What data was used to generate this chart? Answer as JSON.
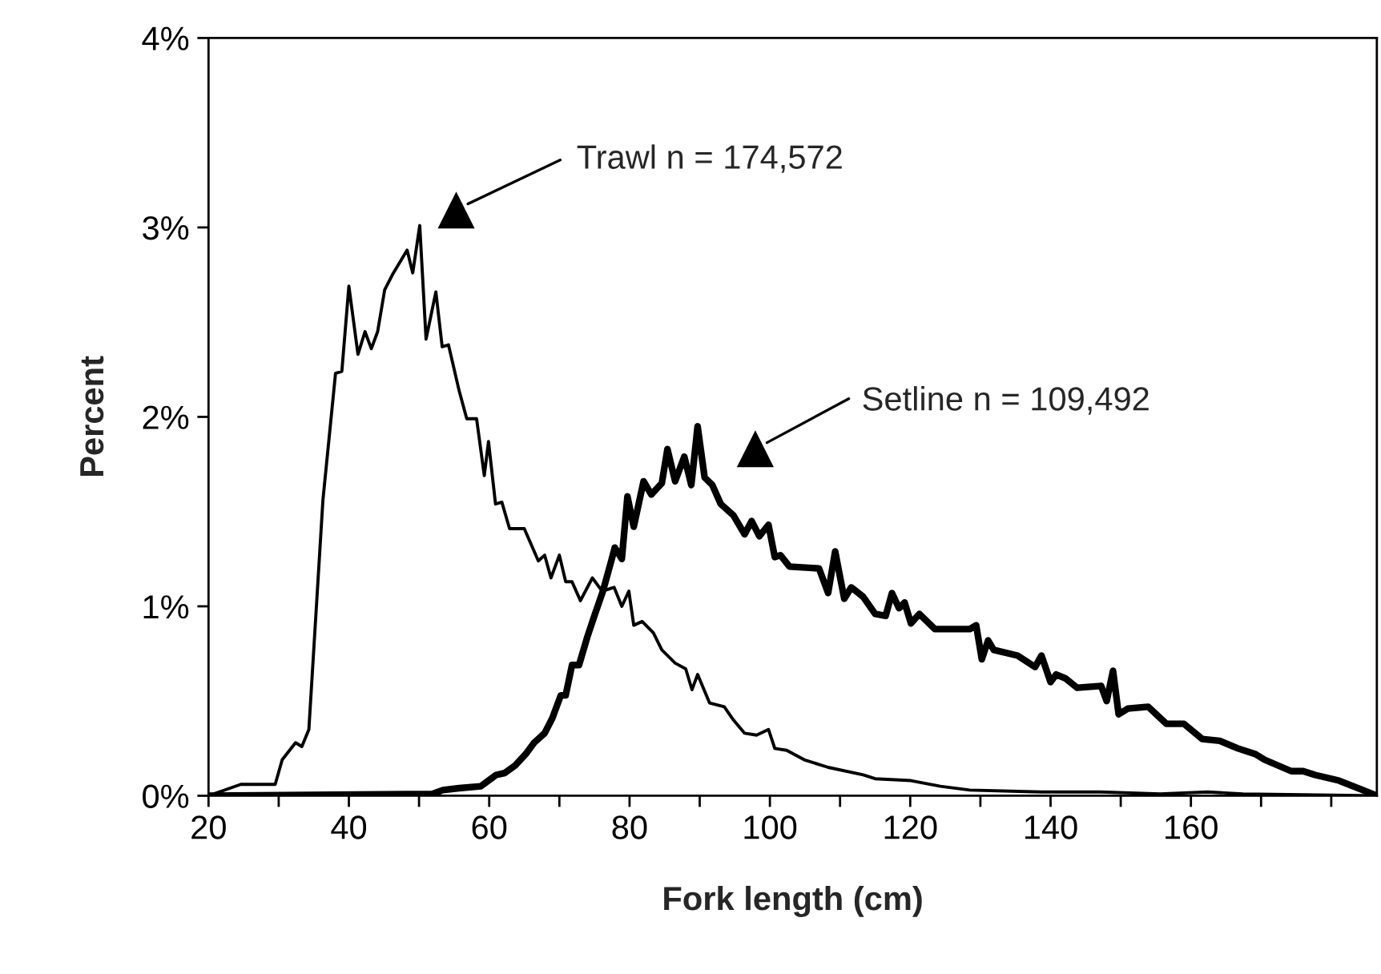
{
  "chart_data": {
    "type": "line",
    "xlabel": "Fork length (cm)",
    "ylabel": "Percent",
    "xlim": [
      20,
      186.5
    ],
    "xticks": [
      20,
      {
        "value": 30,
        "label": null
      },
      40,
      {
        "value": 50,
        "label": null
      },
      60,
      {
        "value": 70,
        "label": null
      },
      80,
      {
        "value": 90,
        "label": null
      },
      100,
      {
        "value": 110,
        "label": null
      },
      120,
      {
        "value": 130,
        "label": null
      },
      140,
      {
        "value": 150,
        "label": null
      },
      160,
      {
        "value": 170,
        "label": null
      },
      {
        "value": 180,
        "label": null
      }
    ],
    "ylim": [
      0,
      4
    ],
    "yticks": [
      {
        "value": 0,
        "label": "0%"
      },
      {
        "value": 1,
        "label": "1%"
      },
      {
        "value": 2,
        "label": "2%"
      },
      {
        "value": 3,
        "label": "3%"
      },
      {
        "value": 4,
        "label": "4%"
      }
    ],
    "grid": false,
    "legend": false,
    "marker": "none",
    "line_style": "solid",
    "series": [
      {
        "color": "#000000",
        "x": [
          20,
          24.6,
          29.5,
          30.5,
          32.4,
          33.3,
          34.3,
          36.3,
          38.1,
          39,
          40,
          41.3,
          42.3,
          43.2,
          44.1,
          45.1,
          46.2,
          48.3,
          49.1,
          50.1,
          51,
          52.4,
          53.3,
          54.2,
          55.7,
          56.8,
          58.2,
          59.3,
          59.9,
          60.9,
          61.8,
          62.9,
          65,
          67,
          67.9,
          68.8,
          70,
          70.9,
          71.8,
          73,
          74.7,
          76.1,
          77.8,
          78.9,
          79.9,
          80.6,
          81.8,
          83.4,
          84.6,
          86.5,
          88,
          88.9,
          89.7,
          91.4,
          93.5,
          94.8,
          96.4,
          98.1,
          99.8,
          100.7,
          102.4,
          104.9,
          108.3,
          113.3,
          115,
          120.1,
          124.3,
          128.5,
          138.7,
          147.1,
          155.6,
          162.4,
          167.4,
          186.5
        ],
        "values": [
          0,
          0.06,
          0.06,
          0.19,
          0.28,
          0.26,
          0.35,
          1.56,
          2.23,
          2.24,
          2.69,
          2.33,
          2.45,
          2.36,
          2.45,
          2.67,
          2.75,
          2.88,
          2.76,
          3.01,
          2.41,
          2.66,
          2.37,
          2.38,
          2.14,
          1.99,
          1.99,
          1.69,
          1.87,
          1.54,
          1.55,
          1.41,
          1.41,
          1.24,
          1.27,
          1.15,
          1.27,
          1.13,
          1.13,
          1.03,
          1.15,
          1.08,
          1.1,
          1.0,
          1.08,
          0.9,
          0.92,
          0.86,
          0.77,
          0.7,
          0.67,
          0.56,
          0.64,
          0.49,
          0.47,
          0.4,
          0.33,
          0.32,
          0.35,
          0.25,
          0.24,
          0.19,
          0.15,
          0.11,
          0.09,
          0.08,
          0.05,
          0.03,
          0.02,
          0.02,
          0.01,
          0.02,
          0.01,
          0
        ]
      },
      {
        "color": "#000000",
        "x": [
          20,
          51.9,
          53.4,
          55.7,
          58.8,
          61,
          62.2,
          63.7,
          65.2,
          66.4,
          67.9,
          69,
          70.2,
          70.9,
          71.8,
          72.8,
          74,
          74.9,
          76.2,
          77.4,
          77.9,
          78.9,
          79.7,
          80.6,
          82,
          83.1,
          84.6,
          85.4,
          86.5,
          87.8,
          88.8,
          89.7,
          90.7,
          91.8,
          93,
          94.8,
          96.4,
          97.4,
          98.5,
          99.8,
          100.7,
          101.5,
          102.8,
          107,
          108.3,
          109.3,
          110.6,
          111.6,
          113.3,
          115,
          116.5,
          117.4,
          118.4,
          119.2,
          120.1,
          121.3,
          123.5,
          128.5,
          129.4,
          130.2,
          131.1,
          131.9,
          135.3,
          137.8,
          138.7,
          140,
          140.8,
          142.1,
          143.8,
          147.2,
          148,
          148.9,
          149.7,
          151,
          153.9,
          156.5,
          159,
          161.6,
          164.1,
          166.7,
          169.2,
          170.5,
          174.3,
          176,
          177.7,
          181.1,
          184.5,
          186.5
        ],
        "values": [
          0,
          0.01,
          0.03,
          0.04,
          0.05,
          0.11,
          0.12,
          0.16,
          0.22,
          0.28,
          0.33,
          0.41,
          0.53,
          0.53,
          0.69,
          0.69,
          0.84,
          0.94,
          1.08,
          1.24,
          1.31,
          1.25,
          1.58,
          1.42,
          1.66,
          1.59,
          1.65,
          1.83,
          1.66,
          1.79,
          1.64,
          1.95,
          1.68,
          1.64,
          1.54,
          1.48,
          1.38,
          1.45,
          1.37,
          1.43,
          1.26,
          1.27,
          1.21,
          1.2,
          1.07,
          1.29,
          1.04,
          1.1,
          1.05,
          0.96,
          0.95,
          1.07,
          0.99,
          1.02,
          0.91,
          0.96,
          0.88,
          0.88,
          0.9,
          0.72,
          0.82,
          0.77,
          0.74,
          0.68,
          0.74,
          0.6,
          0.64,
          0.62,
          0.57,
          0.58,
          0.5,
          0.66,
          0.43,
          0.46,
          0.47,
          0.38,
          0.38,
          0.3,
          0.29,
          0.25,
          0.22,
          0.19,
          0.13,
          0.13,
          0.11,
          0.08,
          0.03,
          0
        ]
      }
    ],
    "annotations": [
      "Trawl n = 174,572",
      "Setline n = 109,492"
    ]
  }
}
